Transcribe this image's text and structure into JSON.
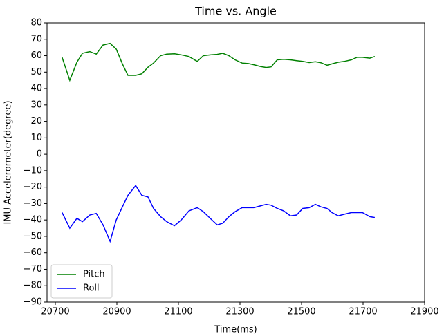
{
  "chart_data": {
    "type": "line",
    "title": "Time vs. Angle",
    "x_label": "Time(ms)",
    "y_label": "IMU Accelerometer(degree)",
    "x": [
      20722,
      20747,
      20770,
      20788,
      20812,
      20833,
      20855,
      20878,
      20898,
      20918,
      20936,
      20961,
      20981,
      21001,
      21019,
      21042,
      21062,
      21087,
      21109,
      21134,
      21161,
      21181,
      21206,
      21226,
      21244,
      21264,
      21284,
      21307,
      21327,
      21345,
      21365,
      21385,
      21401,
      21421,
      21442,
      21464,
      21484,
      21504,
      21525,
      21545,
      21563,
      21583,
      21599,
      21619,
      21639,
      21662,
      21680,
      21698,
      21722,
      21738
    ],
    "series": [
      {
        "name": "Pitch",
        "color": "#008000",
        "values": [
          59,
          45,
          56,
          61.5,
          62.5,
          61,
          66.5,
          67.5,
          64,
          55,
          48,
          48,
          49,
          53,
          55.5,
          60,
          61,
          61.2,
          60.5,
          59.5,
          56.5,
          60,
          60.5,
          60.8,
          61.5,
          60,
          57.5,
          55.5,
          55.2,
          54.5,
          53.5,
          52.8,
          53.2,
          57.5,
          57.8,
          57.5,
          57,
          56.5,
          55.8,
          56.3,
          55.7,
          54.2,
          55,
          56,
          56.5,
          57.5,
          59,
          59,
          58.5,
          59.5
        ]
      },
      {
        "name": "Roll",
        "color": "#0000ff",
        "values": [
          -35.5,
          -45,
          -39,
          -41,
          -37,
          -36,
          -43,
          -53,
          -40,
          -32,
          -25,
          -19,
          -25,
          -26,
          -33,
          -38,
          -41,
          -43.5,
          -40,
          -34.5,
          -32.5,
          -35,
          -39.5,
          -43,
          -42,
          -38,
          -35,
          -32.5,
          -32.5,
          -32.5,
          -31.5,
          -30.5,
          -31,
          -33,
          -34.5,
          -37.5,
          -37,
          -33,
          -32.5,
          -30.5,
          -32,
          -33,
          -35.5,
          -37.5,
          -36.5,
          -35.5,
          -35.5,
          -35.5,
          -38,
          -38.5
        ]
      }
    ],
    "xlim": [
      20673,
      21900
    ],
    "xticks": [
      20700,
      20900,
      21100,
      21300,
      21500,
      21700,
      21900
    ],
    "ylim": [
      -90,
      80
    ],
    "yticks": [
      {
        "value": -90,
        "label": "−90"
      },
      {
        "value": -80,
        "label": "−80"
      },
      {
        "value": -70,
        "label": "−70"
      },
      {
        "value": -60,
        "label": "−60"
      },
      {
        "value": -50,
        "label": "−50"
      },
      {
        "value": -40,
        "label": "−40"
      },
      {
        "value": -30,
        "label": "−30"
      },
      {
        "value": -20,
        "label": "−20"
      },
      {
        "value": -10,
        "label": "−10"
      },
      0,
      10,
      20,
      30,
      40,
      50,
      60,
      70,
      80
    ],
    "legend": "lower left"
  }
}
